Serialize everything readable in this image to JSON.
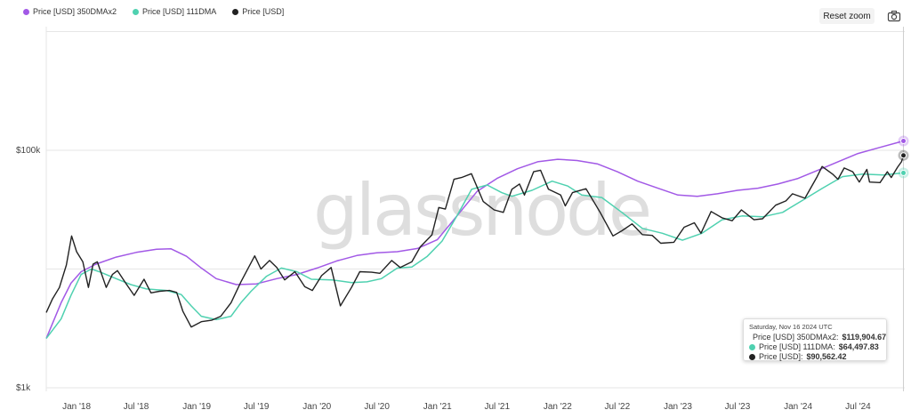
{
  "legend": [
    {
      "label": "Price [USD] 350DMAx2",
      "color": "#a259e6"
    },
    {
      "label": "Price [USD] 111DMA",
      "color": "#4fd1b0"
    },
    {
      "label": "Price [USD]",
      "color": "#222222"
    }
  ],
  "toolbar": {
    "reset_zoom_label": "Reset zoom",
    "camera_icon": "camera-icon"
  },
  "watermark": "glassnode",
  "tooltip": {
    "date": "Saturday, Nov 16 2024 UTC",
    "rows": [
      {
        "label": "Price [USD] 350DMAx2:",
        "value": "$119,904.67",
        "color": "#a259e6"
      },
      {
        "label": "Price [USD] 111DMA:",
        "value": "$64,497.83",
        "color": "#4fd1b0"
      },
      {
        "label": "Price [USD]:",
        "value": "$90,562.42",
        "color": "#222222"
      }
    ]
  },
  "chart_data": {
    "type": "line",
    "y_scale": "log",
    "ylim": [
      1000,
      1000000
    ],
    "y_ticks": [
      {
        "label": "$1k",
        "value": 1000
      },
      {
        "label": "$100k",
        "value": 100000
      }
    ],
    "x_ticks": [
      "Jan '18",
      "Jul '18",
      "Jan '19",
      "Jul '19",
      "Jan '20",
      "Jul '20",
      "Jan '21",
      "Jul '21",
      "Jan '22",
      "Jul '22",
      "Jan '23",
      "Jul '23",
      "Jan '24",
      "Jul '24"
    ],
    "x_range": [
      "2017-10-01",
      "2024-11-20"
    ],
    "series": [
      {
        "name": "Price [USD] 350DMAx2",
        "color": "#a259e6",
        "points": [
          [
            "2017-10-01",
            2600
          ],
          [
            "2017-11-15",
            5200
          ],
          [
            "2017-12-15",
            7600
          ],
          [
            "2018-01-15",
            9500
          ],
          [
            "2018-03-01",
            11000
          ],
          [
            "2018-05-01",
            12600
          ],
          [
            "2018-07-01",
            13800
          ],
          [
            "2018-09-01",
            14700
          ],
          [
            "2018-10-15",
            14800
          ],
          [
            "2018-12-01",
            12800
          ],
          [
            "2019-01-15",
            10200
          ],
          [
            "2019-03-01",
            8300
          ],
          [
            "2019-05-01",
            7400
          ],
          [
            "2019-07-01",
            7500
          ],
          [
            "2019-09-01",
            8300
          ],
          [
            "2019-11-01",
            9000
          ],
          [
            "2020-01-01",
            10200
          ],
          [
            "2020-03-01",
            11700
          ],
          [
            "2020-05-01",
            13000
          ],
          [
            "2020-07-01",
            13700
          ],
          [
            "2020-09-01",
            14000
          ],
          [
            "2020-11-01",
            14900
          ],
          [
            "2021-01-01",
            17700
          ],
          [
            "2021-03-01",
            28000
          ],
          [
            "2021-05-01",
            45000
          ],
          [
            "2021-07-01",
            58000
          ],
          [
            "2021-09-01",
            70000
          ],
          [
            "2021-11-01",
            80000
          ],
          [
            "2022-01-01",
            84000
          ],
          [
            "2022-03-01",
            82000
          ],
          [
            "2022-05-01",
            77000
          ],
          [
            "2022-07-01",
            66000
          ],
          [
            "2022-09-01",
            55000
          ],
          [
            "2022-11-01",
            48000
          ],
          [
            "2023-01-01",
            42000
          ],
          [
            "2023-03-01",
            41000
          ],
          [
            "2023-05-01",
            43000
          ],
          [
            "2023-07-01",
            46000
          ],
          [
            "2023-09-01",
            48000
          ],
          [
            "2023-11-01",
            52000
          ],
          [
            "2024-01-01",
            58000
          ],
          [
            "2024-03-01",
            68000
          ],
          [
            "2024-05-01",
            80000
          ],
          [
            "2024-07-01",
            94000
          ],
          [
            "2024-09-01",
            105000
          ],
          [
            "2024-11-16",
            119904.67
          ]
        ]
      },
      {
        "name": "Price [USD] 111DMA",
        "color": "#4fd1b0",
        "points": [
          [
            "2017-10-01",
            2600
          ],
          [
            "2017-11-15",
            3800
          ],
          [
            "2017-12-15",
            6000
          ],
          [
            "2018-01-15",
            9000
          ],
          [
            "2018-02-15",
            10000
          ],
          [
            "2018-03-15",
            9400
          ],
          [
            "2018-05-01",
            8300
          ],
          [
            "2018-06-15",
            7400
          ],
          [
            "2018-08-01",
            6800
          ],
          [
            "2018-10-01",
            6600
          ],
          [
            "2018-11-15",
            6100
          ],
          [
            "2018-12-15",
            4900
          ],
          [
            "2019-01-15",
            4000
          ],
          [
            "2019-03-01",
            3750
          ],
          [
            "2019-04-15",
            4000
          ],
          [
            "2019-05-15",
            5200
          ],
          [
            "2019-06-15",
            6500
          ],
          [
            "2019-08-01",
            8700
          ],
          [
            "2019-09-15",
            10200
          ],
          [
            "2019-11-01",
            9500
          ],
          [
            "2019-12-15",
            8200
          ],
          [
            "2020-02-15",
            8100
          ],
          [
            "2020-04-15",
            7700
          ],
          [
            "2020-06-01",
            7800
          ],
          [
            "2020-07-15",
            8300
          ],
          [
            "2020-09-01",
            10200
          ],
          [
            "2020-10-15",
            10400
          ],
          [
            "2020-12-01",
            12800
          ],
          [
            "2021-01-15",
            17200
          ],
          [
            "2021-03-01",
            28000
          ],
          [
            "2021-04-15",
            47000
          ],
          [
            "2021-06-01",
            51000
          ],
          [
            "2021-07-15",
            44000
          ],
          [
            "2021-08-15",
            41000
          ],
          [
            "2021-10-15",
            46000
          ],
          [
            "2021-12-15",
            55000
          ],
          [
            "2022-02-01",
            50000
          ],
          [
            "2022-03-15",
            42000
          ],
          [
            "2022-05-15",
            40000
          ],
          [
            "2022-07-15",
            30000
          ],
          [
            "2022-09-15",
            22000
          ],
          [
            "2022-11-15",
            20000
          ],
          [
            "2023-01-15",
            17500
          ],
          [
            "2023-03-15",
            20000
          ],
          [
            "2023-05-15",
            26000
          ],
          [
            "2023-07-15",
            28000
          ],
          [
            "2023-09-15",
            27500
          ],
          [
            "2023-11-15",
            30000
          ],
          [
            "2024-01-15",
            38000
          ],
          [
            "2024-03-15",
            48000
          ],
          [
            "2024-05-15",
            60000
          ],
          [
            "2024-07-15",
            63000
          ],
          [
            "2024-09-15",
            62000
          ],
          [
            "2024-11-16",
            64497.83
          ]
        ]
      },
      {
        "name": "Price [USD]",
        "color": "#222222",
        "points": [
          [
            "2017-10-01",
            4300
          ],
          [
            "2017-10-20",
            5600
          ],
          [
            "2017-11-10",
            7000
          ],
          [
            "2017-12-01",
            10800
          ],
          [
            "2017-12-17",
            19000
          ],
          [
            "2018-01-01",
            14000
          ],
          [
            "2018-01-20",
            11500
          ],
          [
            "2018-02-06",
            7000
          ],
          [
            "2018-02-20",
            11000
          ],
          [
            "2018-03-05",
            11500
          ],
          [
            "2018-04-01",
            7000
          ],
          [
            "2018-04-20",
            9000
          ],
          [
            "2018-05-05",
            9700
          ],
          [
            "2018-06-01",
            7500
          ],
          [
            "2018-06-25",
            6000
          ],
          [
            "2018-07-25",
            8200
          ],
          [
            "2018-08-15",
            6300
          ],
          [
            "2018-09-10",
            6500
          ],
          [
            "2018-10-10",
            6600
          ],
          [
            "2018-11-01",
            6350
          ],
          [
            "2018-11-20",
            4400
          ],
          [
            "2018-12-15",
            3250
          ],
          [
            "2019-01-15",
            3600
          ],
          [
            "2019-02-15",
            3700
          ],
          [
            "2019-03-15",
            4000
          ],
          [
            "2019-04-15",
            5200
          ],
          [
            "2019-05-15",
            7800
          ],
          [
            "2019-06-26",
            12900
          ],
          [
            "2019-07-15",
            10000
          ],
          [
            "2019-08-10",
            11800
          ],
          [
            "2019-09-01",
            10300
          ],
          [
            "2019-09-25",
            8100
          ],
          [
            "2019-10-26",
            9500
          ],
          [
            "2019-11-25",
            7100
          ],
          [
            "2019-12-18",
            6600
          ],
          [
            "2020-01-15",
            8800
          ],
          [
            "2020-02-13",
            10300
          ],
          [
            "2020-03-12",
            4900
          ],
          [
            "2020-04-15",
            7000
          ],
          [
            "2020-05-10",
            9500
          ],
          [
            "2020-06-15",
            9400
          ],
          [
            "2020-07-10",
            9200
          ],
          [
            "2020-08-15",
            11800
          ],
          [
            "2020-09-10",
            10300
          ],
          [
            "2020-10-15",
            11500
          ],
          [
            "2020-11-10",
            15400
          ],
          [
            "2020-12-15",
            19400
          ],
          [
            "2021-01-05",
            33000
          ],
          [
            "2021-01-25",
            32000
          ],
          [
            "2021-02-20",
            57000
          ],
          [
            "2021-03-15",
            59000
          ],
          [
            "2021-04-14",
            63500
          ],
          [
            "2021-05-20",
            37000
          ],
          [
            "2021-06-22",
            31500
          ],
          [
            "2021-07-20",
            30000
          ],
          [
            "2021-08-15",
            47000
          ],
          [
            "2021-09-07",
            52000
          ],
          [
            "2021-09-22",
            42000
          ],
          [
            "2021-10-20",
            66000
          ],
          [
            "2021-11-10",
            68000
          ],
          [
            "2021-12-04",
            47000
          ],
          [
            "2022-01-10",
            42000
          ],
          [
            "2022-01-24",
            34000
          ],
          [
            "2022-02-15",
            44000
          ],
          [
            "2022-03-28",
            47500
          ],
          [
            "2022-05-10",
            30000
          ],
          [
            "2022-06-18",
            19000
          ],
          [
            "2022-07-15",
            21000
          ],
          [
            "2022-08-15",
            24000
          ],
          [
            "2022-09-15",
            19500
          ],
          [
            "2022-10-15",
            19200
          ],
          [
            "2022-11-10",
            16500
          ],
          [
            "2022-12-20",
            16800
          ],
          [
            "2023-01-20",
            22500
          ],
          [
            "2023-02-20",
            24500
          ],
          [
            "2023-03-12",
            20000
          ],
          [
            "2023-04-12",
            30500
          ],
          [
            "2023-05-15",
            27000
          ],
          [
            "2023-06-15",
            25500
          ],
          [
            "2023-07-13",
            31500
          ],
          [
            "2023-08-20",
            26000
          ],
          [
            "2023-09-15",
            26500
          ],
          [
            "2023-10-25",
            34500
          ],
          [
            "2023-11-25",
            37500
          ],
          [
            "2023-12-15",
            43000
          ],
          [
            "2024-01-22",
            39500
          ],
          [
            "2024-02-28",
            60000
          ],
          [
            "2024-03-14",
            73000
          ],
          [
            "2024-04-15",
            63000
          ],
          [
            "2024-05-01",
            57000
          ],
          [
            "2024-05-20",
            71000
          ],
          [
            "2024-06-15",
            66000
          ],
          [
            "2024-07-05",
            54000
          ],
          [
            "2024-07-28",
            69000
          ],
          [
            "2024-08-05",
            54000
          ],
          [
            "2024-09-06",
            53500
          ],
          [
            "2024-09-28",
            66000
          ],
          [
            "2024-10-10",
            59000
          ],
          [
            "2024-10-29",
            72000
          ],
          [
            "2024-11-10",
            80000
          ],
          [
            "2024-11-16",
            90562.42
          ]
        ]
      }
    ]
  }
}
